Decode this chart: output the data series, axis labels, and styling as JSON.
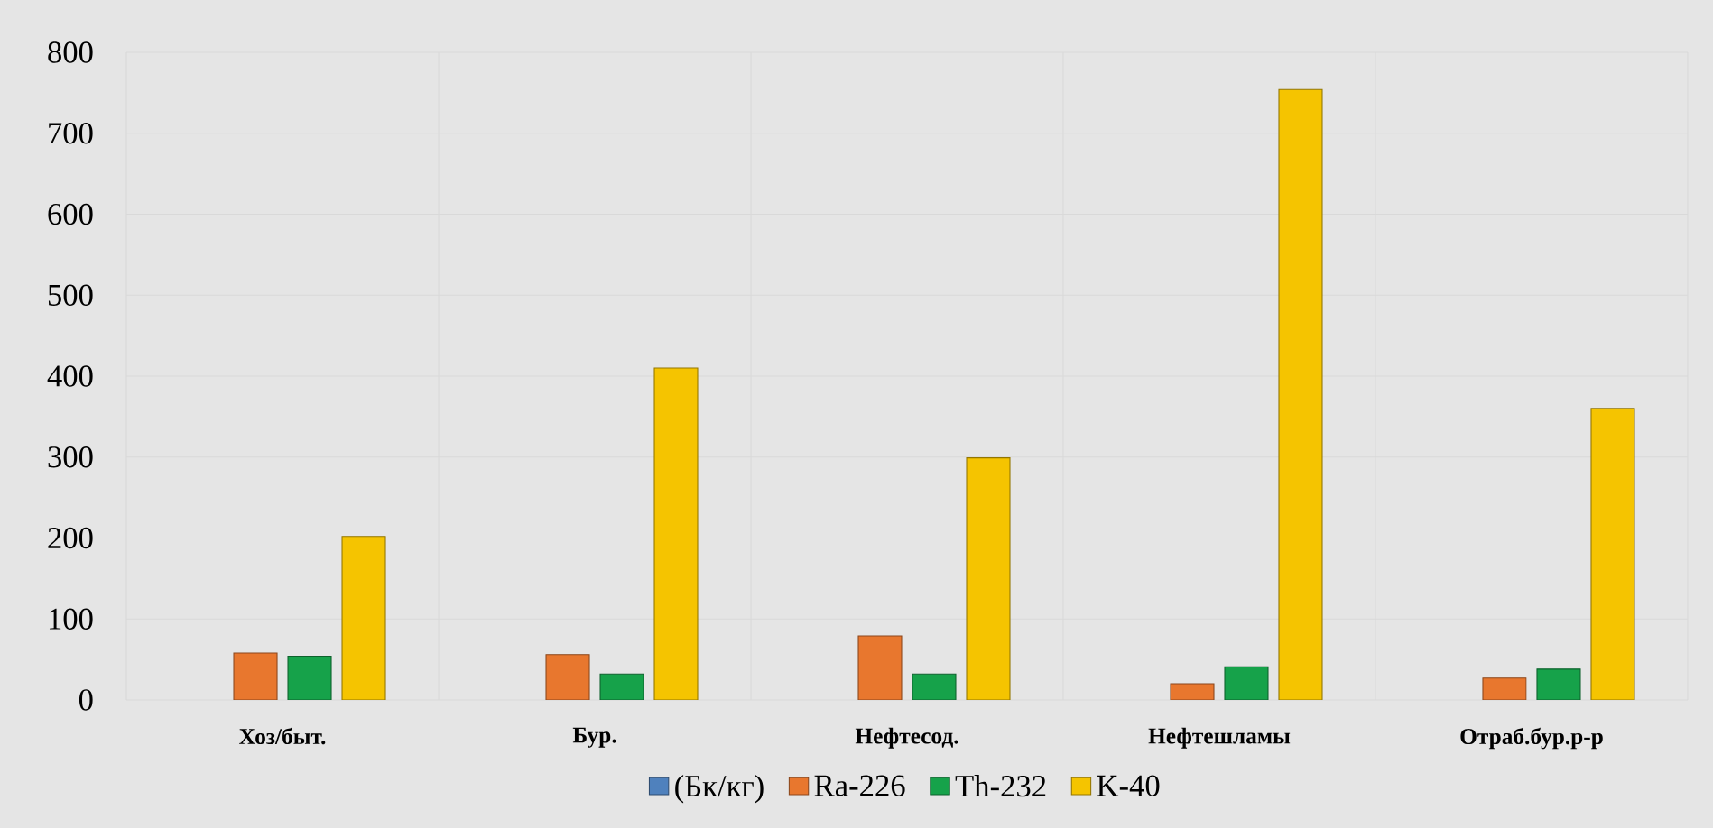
{
  "chart_data": {
    "type": "bar",
    "categories": [
      "Хоз/быт.",
      "Бур.",
      "Нефтесод.",
      "Нефтешламы",
      "Отраб.бур.р-р"
    ],
    "series": [
      {
        "name": "(Бк/кг)",
        "color": "#4f81bd",
        "values": [
          null,
          null,
          null,
          null,
          null
        ]
      },
      {
        "name": "Ra-226",
        "color": "#e8772e",
        "values": [
          58,
          56,
          79,
          20,
          27
        ]
      },
      {
        "name": "Th-232",
        "color": "#16a24a",
        "values": [
          54,
          32,
          32,
          41,
          38
        ]
      },
      {
        "name": "K-40",
        "color": "#f5c400",
        "values": [
          202,
          410,
          299,
          754,
          360
        ]
      }
    ],
    "ylim": [
      0,
      800
    ],
    "yticks": [
      0,
      100,
      200,
      300,
      400,
      500,
      600,
      700,
      800
    ],
    "grid": true,
    "legend": "bottom"
  }
}
